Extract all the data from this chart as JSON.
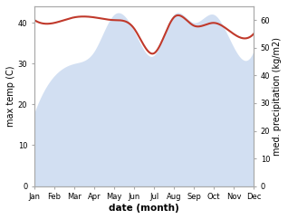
{
  "months": [
    "Jan",
    "Feb",
    "Mar",
    "Apr",
    "May",
    "Jun",
    "Jul",
    "Aug",
    "Sep",
    "Oct",
    "Nov",
    "Dec"
  ],
  "month_indices": [
    0,
    1,
    2,
    3,
    4,
    5,
    6,
    7,
    8,
    9,
    10,
    11
  ],
  "max_temp": [
    18,
    27,
    30,
    33,
    42,
    38,
    32,
    42,
    40,
    42,
    34,
    33
  ],
  "precipitation": [
    60,
    59,
    61,
    61,
    60,
    57,
    48,
    61,
    58,
    59,
    55,
    55
  ],
  "precip_color": "#c0392b",
  "fill_color": "#aec6e8",
  "fill_alpha": 0.55,
  "ylabel_left": "max temp (C)",
  "ylabel_right": "med. precipitation (kg/m2)",
  "xlabel": "date (month)",
  "ylim_left": [
    0,
    44
  ],
  "ylim_right": [
    0,
    65
  ],
  "yticks_left": [
    0,
    10,
    20,
    30,
    40
  ],
  "yticks_right": [
    0,
    10,
    20,
    30,
    40,
    50,
    60
  ],
  "spine_color": "#aaaaaa",
  "tick_label_fontsize": 6,
  "axis_label_fontsize": 7,
  "xlabel_fontsize": 7.5,
  "line_width": 1.5
}
